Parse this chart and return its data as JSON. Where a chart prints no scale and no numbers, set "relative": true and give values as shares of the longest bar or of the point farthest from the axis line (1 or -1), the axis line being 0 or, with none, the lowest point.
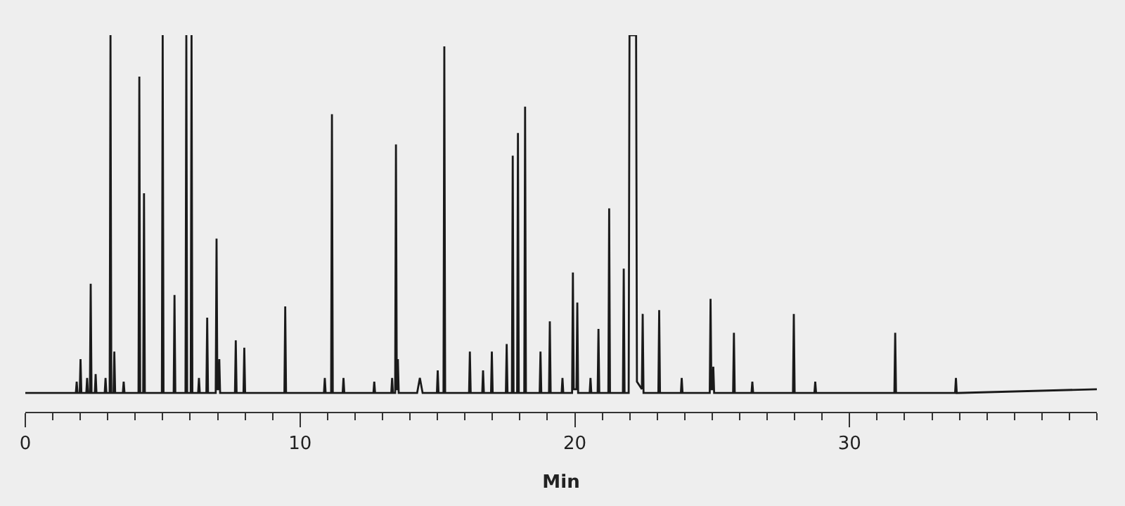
{
  "chart_data": {
    "type": "line",
    "relative": true,
    "xlabel": "Min",
    "xlim": [
      0,
      39
    ],
    "xticks": [
      0,
      {
        "value": 1,
        "label": null
      },
      {
        "value": 2,
        "label": null
      },
      {
        "value": 3,
        "label": null
      },
      {
        "value": 4,
        "label": null
      },
      {
        "value": 5,
        "label": null
      },
      {
        "value": 6,
        "label": null
      },
      {
        "value": 7,
        "label": null
      },
      {
        "value": 8,
        "label": null
      },
      {
        "value": 9,
        "label": null
      },
      10,
      {
        "value": 11,
        "label": null
      },
      {
        "value": 12,
        "label": null
      },
      {
        "value": 13,
        "label": null
      },
      {
        "value": 14,
        "label": null
      },
      {
        "value": 15,
        "label": null
      },
      {
        "value": 16,
        "label": null
      },
      {
        "value": 17,
        "label": null
      },
      {
        "value": 18,
        "label": null
      },
      {
        "value": 19,
        "label": null
      },
      20,
      {
        "value": 21,
        "label": null
      },
      {
        "value": 22,
        "label": null
      },
      {
        "value": 23,
        "label": null
      },
      {
        "value": 24,
        "label": null
      },
      {
        "value": 25,
        "label": null
      },
      {
        "value": 26,
        "label": null
      },
      {
        "value": 27,
        "label": null
      },
      {
        "value": 28,
        "label": null
      },
      {
        "value": 29,
        "label": null
      },
      30,
      {
        "value": 31,
        "label": null
      },
      {
        "value": 32,
        "label": null
      },
      {
        "value": 33,
        "label": null
      },
      {
        "value": 34,
        "label": null
      },
      {
        "value": 35,
        "label": null
      },
      {
        "value": 36,
        "label": null
      },
      {
        "value": 37,
        "label": null
      },
      {
        "value": 38,
        "label": null
      },
      {
        "value": 39,
        "label": null
      }
    ],
    "marker": "none",
    "line_style": "solid",
    "series": [
      {
        "color": "#1a1a1a",
        "x": [
          0,
          1.84,
          1.87,
          1.9,
          1.98,
          2.01,
          2.04,
          2.22,
          2.25,
          2.28,
          2.35,
          2.38,
          2.41,
          2.53,
          2.56,
          2.59,
          2.89,
          2.92,
          2.95,
          3.07,
          3.1,
          3.13,
          3.21,
          3.24,
          3.27,
          3.55,
          3.58,
          3.61,
          4.12,
          4.15,
          4.18,
          4.29,
          4.32,
          4.35,
          4.97,
          5.0,
          5.03,
          5.4,
          5.43,
          5.46,
          5.83,
          5.86,
          5.89,
          6.02,
          6.05,
          6.08,
          6.29,
          6.32,
          6.35,
          6.59,
          6.62,
          6.65,
          6.93,
          6.96,
          6.99,
          7.03,
          7.06,
          7.09,
          7.63,
          7.66,
          7.69,
          7.94,
          7.97,
          8.0,
          9.43,
          9.46,
          9.49,
          10.87,
          10.9,
          10.93,
          11.13,
          11.16,
          11.19,
          11.55,
          11.58,
          11.61,
          12.67,
          12.7,
          12.73,
          13.32,
          13.35,
          13.38,
          13.46,
          13.49,
          13.52,
          13.53,
          13.56,
          13.59,
          14.26,
          14.36,
          14.46,
          14.98,
          15.01,
          15.04,
          15.22,
          15.25,
          15.28,
          16.15,
          16.18,
          16.21,
          16.63,
          16.66,
          16.69,
          16.95,
          16.98,
          17.01,
          17.49,
          17.52,
          17.55,
          17.71,
          17.74,
          17.77,
          17.9,
          17.93,
          17.96,
          18.16,
          18.19,
          18.22,
          18.72,
          18.75,
          18.78,
          19.06,
          19.09,
          19.12,
          19.52,
          19.55,
          19.58,
          19.9,
          19.93,
          19.96,
          20.06,
          20.09,
          20.12,
          20.54,
          20.57,
          20.6,
          20.83,
          20.86,
          20.89,
          21.22,
          21.25,
          21.28,
          21.75,
          21.78,
          21.81,
          21.96,
          21.99,
          22.23,
          22.26,
          22.44,
          22.47,
          22.5,
          23.04,
          23.07,
          23.1,
          23.86,
          23.89,
          23.92,
          24.91,
          24.94,
          24.97,
          25.01,
          25.04,
          25.07,
          25.76,
          25.79,
          25.82,
          26.43,
          26.46,
          26.49,
          27.94,
          27.97,
          28.0,
          28.72,
          28.75,
          28.78,
          31.63,
          31.66,
          31.69,
          33.84,
          33.87,
          33.9,
          39
        ],
        "values": [
          0.05,
          0.05,
          0.08,
          0.05,
          0.05,
          0.14,
          0.05,
          0.05,
          0.09,
          0.05,
          0.05,
          0.34,
          0.05,
          0.05,
          0.1,
          0.05,
          0.05,
          0.09,
          0.05,
          0.05,
          1.0,
          0.05,
          0.05,
          0.16,
          0.05,
          0.05,
          0.08,
          0.05,
          0.05,
          0.89,
          0.05,
          0.05,
          0.58,
          0.05,
          0.05,
          1.0,
          0.05,
          0.05,
          0.31,
          0.05,
          0.05,
          1.0,
          0.05,
          0.05,
          1.0,
          0.05,
          0.05,
          0.09,
          0.05,
          0.05,
          0.25,
          0.05,
          0.05,
          0.46,
          0.06,
          0.06,
          0.14,
          0.05,
          0.05,
          0.19,
          0.05,
          0.05,
          0.17,
          0.05,
          0.05,
          0.28,
          0.05,
          0.05,
          0.09,
          0.05,
          0.05,
          0.79,
          0.05,
          0.05,
          0.09,
          0.05,
          0.05,
          0.08,
          0.05,
          0.05,
          0.09,
          0.05,
          0.05,
          0.71,
          0.06,
          0.06,
          0.14,
          0.05,
          0.05,
          0.09,
          0.05,
          0.05,
          0.11,
          0.05,
          0.05,
          0.97,
          0.05,
          0.05,
          0.16,
          0.05,
          0.05,
          0.11,
          0.05,
          0.05,
          0.16,
          0.05,
          0.05,
          0.18,
          0.05,
          0.05,
          0.68,
          0.05,
          0.05,
          0.74,
          0.05,
          0.05,
          0.81,
          0.05,
          0.05,
          0.16,
          0.05,
          0.05,
          0.24,
          0.05,
          0.05,
          0.09,
          0.05,
          0.05,
          0.37,
          0.06,
          0.06,
          0.29,
          0.05,
          0.05,
          0.09,
          0.05,
          0.05,
          0.22,
          0.05,
          0.05,
          0.54,
          0.05,
          0.05,
          0.38,
          0.05,
          0.05,
          1.0,
          1.0,
          0.08,
          0.06,
          0.26,
          0.05,
          0.05,
          0.27,
          0.05,
          0.05,
          0.09,
          0.05,
          0.05,
          0.3,
          0.06,
          0.06,
          0.12,
          0.05,
          0.05,
          0.21,
          0.05,
          0.05,
          0.08,
          0.05,
          0.05,
          0.26,
          0.05,
          0.05,
          0.08,
          0.05,
          0.05,
          0.21,
          0.05,
          0.05,
          0.09,
          0.05,
          0.06
        ]
      }
    ]
  }
}
